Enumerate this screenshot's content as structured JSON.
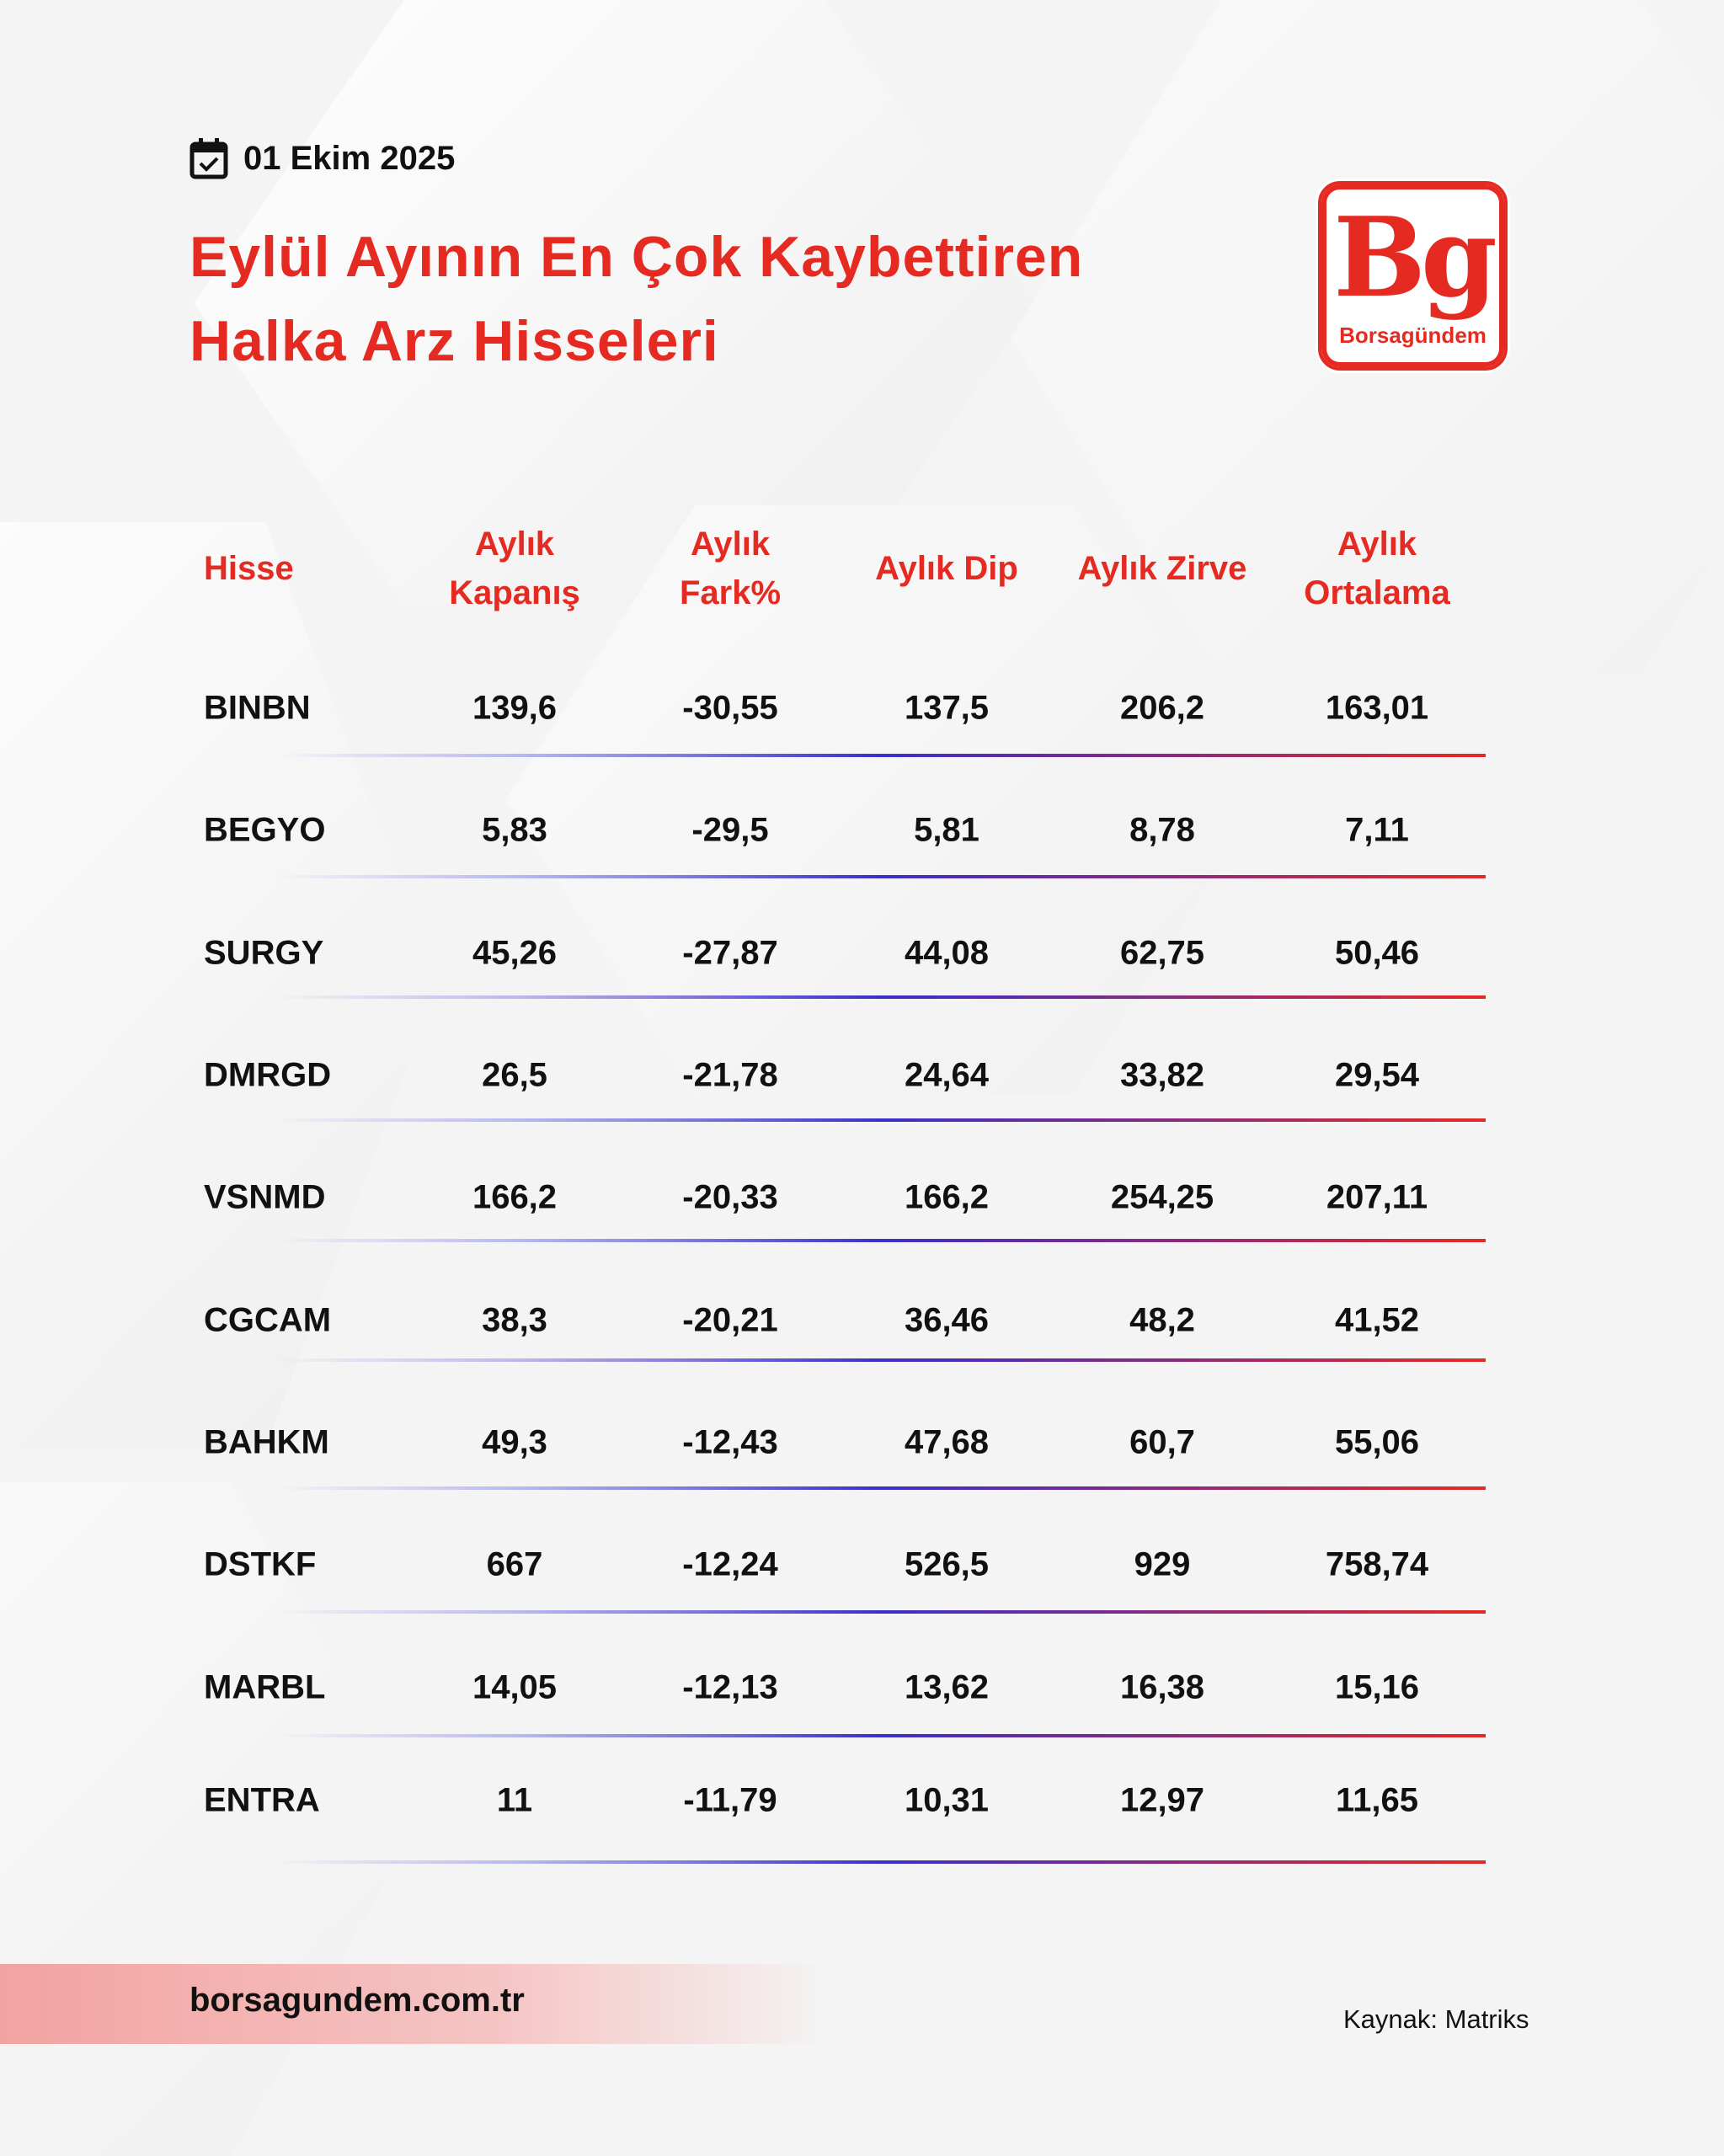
{
  "header": {
    "date": "01 Ekim 2025",
    "title_line1": "Eylül Ayının En Çok Kaybettiren",
    "title_line2": "Halka Arz Hisseleri"
  },
  "logo": {
    "mark": "Bg",
    "name": "Borsagündem"
  },
  "colors": {
    "accent": "#e52a22",
    "text": "#111111",
    "line_mid": "#3b2fc9"
  },
  "table": {
    "columns": [
      "Hisse",
      "Aylık\nKapanış",
      "Aylık\nFark%",
      "Aylık Dip",
      "Aylık Zirve",
      "Aylık\nOrtalama"
    ],
    "rows": [
      [
        "BINBN",
        "139,6",
        "-30,55",
        "137,5",
        "206,2",
        "163,01"
      ],
      [
        "BEGYO",
        "5,83",
        "-29,5",
        "5,81",
        "8,78",
        "7,11"
      ],
      [
        "SURGY",
        "45,26",
        "-27,87",
        "44,08",
        "62,75",
        "50,46"
      ],
      [
        "DMRGD",
        "26,5",
        "-21,78",
        "24,64",
        "33,82",
        "29,54"
      ],
      [
        "VSNMD",
        "166,2",
        "-20,33",
        "166,2",
        "254,25",
        "207,11"
      ],
      [
        "CGCAM",
        "38,3",
        "-20,21",
        "36,46",
        "48,2",
        "41,52"
      ],
      [
        "BAHKM",
        "49,3",
        "-12,43",
        "47,68",
        "60,7",
        "55,06"
      ],
      [
        "DSTKF",
        "667",
        "-12,24",
        "526,5",
        "929",
        "758,74"
      ],
      [
        "MARBL",
        "14,05",
        "-12,13",
        "13,62",
        "16,38",
        "15,16"
      ],
      [
        "ENTRA",
        "11",
        "-11,79",
        "10,31",
        "12,97",
        "11,65"
      ]
    ]
  },
  "footer": {
    "site": "borsagundem.com.tr",
    "source": "Kaynak: Matriks"
  }
}
